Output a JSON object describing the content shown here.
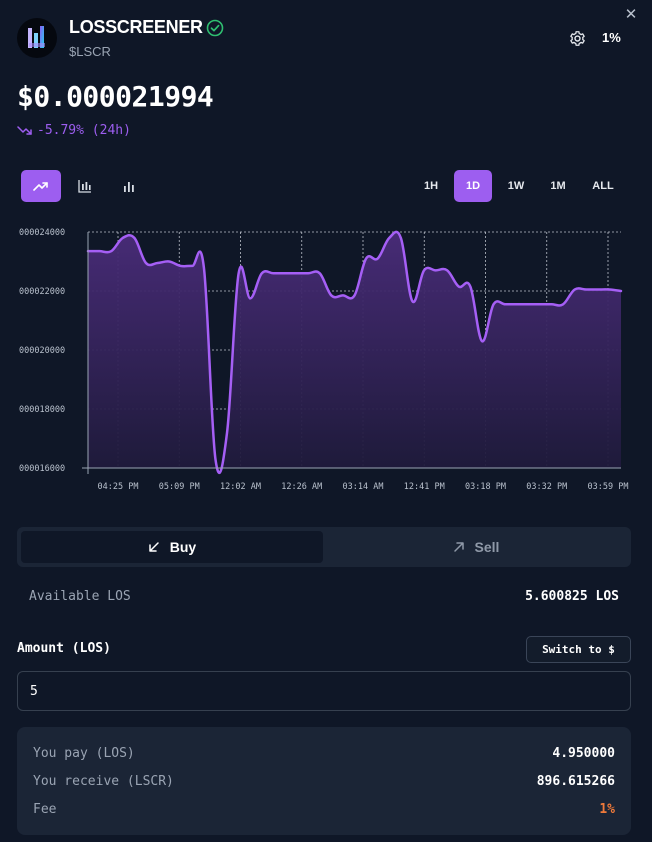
{
  "header": {
    "token_name": "LOSSCREENER",
    "token_symbol": "$LSCR",
    "slippage": "1%",
    "close_glyph": "✕"
  },
  "price": {
    "value": "$0.000021994",
    "change": "-5.79% (24h)",
    "change_color": "#9d5ef0"
  },
  "chart_controls": {
    "types": [
      "line",
      "candles",
      "bars"
    ],
    "active_type": "line",
    "ranges": [
      "1H",
      "1D",
      "1W",
      "1M",
      "ALL"
    ],
    "active_range": "1D"
  },
  "chart_data": {
    "type": "area",
    "y_tick_labels": [
      "000024000",
      "000022000",
      "000020000",
      "000018000",
      "000016000"
    ],
    "y_ticks": [
      24000,
      22000,
      20000,
      18000,
      16000
    ],
    "ylim": [
      16000,
      24000
    ],
    "x_tick_labels": [
      "04:25 PM",
      "05:09 PM",
      "12:02 AM",
      "12:26 AM",
      "03:14 AM",
      "12:41 PM",
      "03:18 PM",
      "03:32 PM",
      "03:59 PM"
    ],
    "grid": true,
    "line_color": "#a55ff5",
    "series": [
      {
        "values": [
          23350,
          23350,
          23350,
          23800,
          23800,
          22950,
          22950,
          23000,
          22850,
          22850,
          22800,
          16300,
          17200,
          22600,
          21750,
          22600,
          22600,
          22600,
          22600,
          22600,
          22600,
          21850,
          21850,
          21850,
          23100,
          23100,
          23800,
          23800,
          21650,
          22700,
          22700,
          22700,
          22150,
          22150,
          20300,
          21550,
          21550,
          21550,
          21550,
          21550,
          21550,
          21550,
          22050,
          22050,
          22050,
          22050,
          22000
        ]
      }
    ]
  },
  "trade": {
    "buy_label": "Buy",
    "sell_label": "Sell",
    "available_label": "Available LOS",
    "available_value": "5.600825 LOS",
    "amount_label": "Amount (LOS)",
    "switch_label": "Switch to $",
    "amount_value": "5",
    "you_pay_label": "You pay (LOS)",
    "you_pay_value": "4.950000",
    "you_receive_label": "You receive (LSCR)",
    "you_receive_value": "896.615266",
    "fee_label": "Fee",
    "fee_value": "1%",
    "fee_color": "#f07a3a"
  },
  "icons": {
    "verified": "check-circle-icon",
    "settings": "gear-icon",
    "trend": "trend-down-icon",
    "buy": "arrow-down-left-icon",
    "sell": "arrow-up-right-icon"
  }
}
